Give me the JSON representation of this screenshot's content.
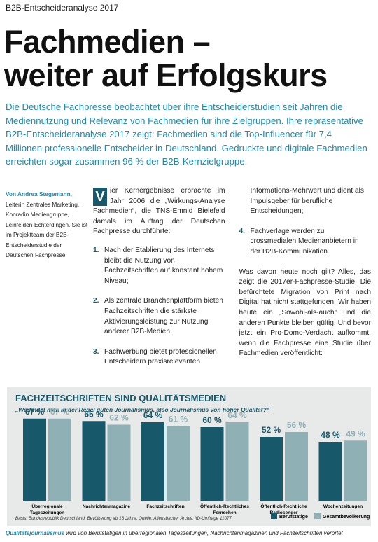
{
  "header": {
    "kicker": "B2B-Entscheideranalyse 2017",
    "title_lines": [
      "Fachmedien –",
      "weiter auf Erfolgskurs"
    ]
  },
  "intro": "Die Deutsche Fachpresse beobachtet über ihre Entscheiderstudien seit Jahren die Mediennutzung und Relevanz von Fachmedien für ihre Zielgruppen. Ihre repräsentative B2B-Entscheideranalyse 2017 zeigt: Fachmedien sind die Top-Influencer für 7,4 Millionen professionelle Entscheider in Deutschland. Gedruckte und digitale Fachmedien erreichten sogar zusammen 96 % der B2B-Kernzielgruppe.",
  "author": {
    "name": "Von Andrea Stegemann,",
    "bio": "Leiterin Zentrales Marketing, Konradin Mediengruppe, Leinfelden-Echterdingen. Sie ist im Projektteam der B2B-Entscheiderstudie der Deutschen Fachpresse."
  },
  "body": {
    "dropcap": "V",
    "lead": "ier Kernergebnisse erbrachte im Jahr 2006 die „Wirkungs-Analyse Fachmedien“, die TNS-Emnid Bielefeld damals im Auftrag der Deutschen Fachpresse durchführte:",
    "items": [
      {
        "number": "1.",
        "text": "Nach der Etablierung des Internets bleibt die Nutzung von Fachzeitschriften auf konstant hohem Niveau;"
      },
      {
        "number": "2.",
        "text": "Als zentrale Branchenplattform bieten Fachzeitschriften die stärkste Aktivierungsleistung zur Nutzung anderer B2B-Medien;"
      },
      {
        "number": "3.",
        "text": "Fachwerbung bietet professionellen Entscheidern praxisrelevanten Informations-Mehrwert und dient als Impulsgeber für berufliche Entscheidungen;"
      },
      {
        "number": "4.",
        "text": "Fachverlage werden zu crossmedialen Medienanbietern in der B2B-Kommunikation."
      }
    ],
    "paragraph": "Was davon heute noch gilt? Alles, das zeigt die 2017er-Fachpresse-Studie. Die befürchtete Migration von Print nach Digital hat nicht stattgefunden. Wir haben heute ein „Sowohl-als-auch“ und die anderen Punkte bleiben gültig. Und bevor jetzt ein Pro-Domo-Verdacht aufkommt, wenn die Fachpresse eine Studie über Fachmedien veröffentlicht:"
  },
  "chart_data": {
    "type": "bar",
    "title": "FACHZEITSCHRIFTEN SIND QUALITÄTSMEDIEN",
    "subtitle": "„Wo findet man in der Regel guten Journalismus, also Journalismus von hoher Qualität?“",
    "categories": [
      "Überregionale Tageszeitungen",
      "Nachrichtenmagazine",
      "Fachzeitschriften",
      "Öffentlich-Rechtliches Fernsehen",
      "Öffentlich-Rechtliche Radiosender",
      "Wochenzeitungen"
    ],
    "series": [
      {
        "name": "Berufstätige",
        "color": "#17596a",
        "values": [
          67,
          65,
          64,
          60,
          52,
          48
        ],
        "value_labels": [
          "67 %",
          "65 %",
          "64 %",
          "60 %",
          "52 %",
          "48 %"
        ]
      },
      {
        "name": "Gesamtbevölkerung",
        "color": "#8fb1b6",
        "values": [
          67,
          62,
          61,
          64,
          56,
          49
        ],
        "value_labels": [
          "67 %",
          "62 %",
          "61 %",
          "64 %",
          "56 %",
          "49 %"
        ]
      }
    ],
    "source": "Basis: Bundesrepublik Deutschland, Bevölkerung ab 16 Jahre. Quelle: Allensbacher Archiv, IfD-Umfrage 11077",
    "legend": "bottom-right"
  },
  "caption": {
    "lead": "Qualitätsjournalismus",
    "text": "wird von Berufstätigen in überregionalen Tageszeitungen, Nachrichtenmagazinen und Fachzeitschriften verortet"
  }
}
